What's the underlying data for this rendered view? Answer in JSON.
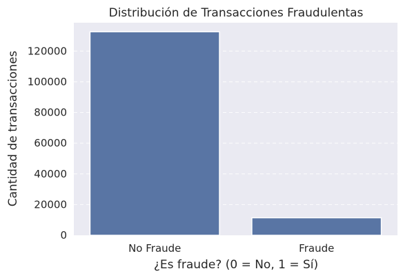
{
  "chart_data": {
    "type": "bar",
    "title": "Distribución de Transacciones Fraudulentas",
    "xlabel": "¿Es fraude? (0 = No, 1 = Sí)",
    "ylabel": "Cantidad de transacciones",
    "categories": [
      "No Fraude",
      "Fraude"
    ],
    "values": [
      132600,
      11400
    ],
    "ylim": [
      0,
      138500
    ],
    "yticks": [
      "0",
      "20000",
      "40000",
      "60000",
      "80000",
      "100000",
      "120000"
    ],
    "grid": true,
    "colors": {
      "bar": "#5975a4",
      "background": "#eaeaf2",
      "grid": "#ffffff"
    }
  }
}
